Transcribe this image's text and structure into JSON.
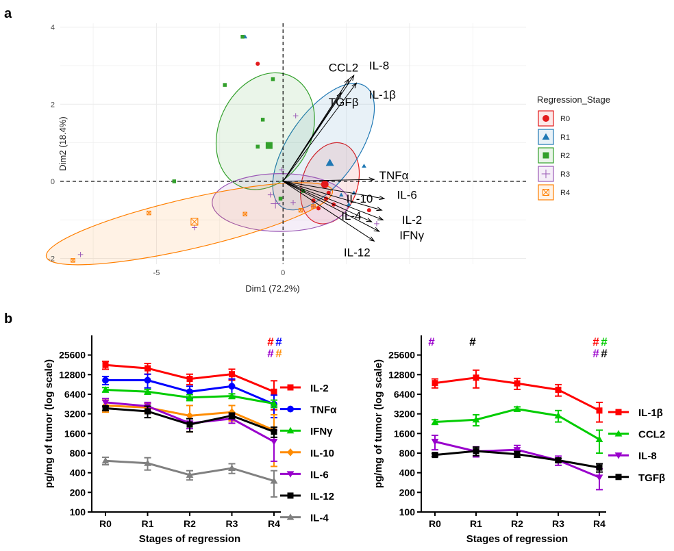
{
  "panel_labels": {
    "a": "a",
    "b": "b"
  },
  "chart_data": [
    {
      "type": "scatter",
      "xlabel": "Dim1 (72.2%)",
      "ylabel": "Dim2 (18.4%)",
      "xlim": [
        -8.8,
        9.6
      ],
      "ylim": [
        -2.15,
        4.1
      ],
      "xticks": [
        -5,
        0
      ],
      "yticks": [
        -2,
        0,
        2,
        4
      ],
      "reference_lines": {
        "x": 0,
        "y": 0
      },
      "grid": true,
      "legend_title": "Regression_Stage",
      "groups": [
        {
          "name": "R0",
          "color": "#e31a1c",
          "marker": "circle",
          "points": [
            [
              -1.0,
              3.05
            ],
            [
              1.8,
              -0.3
            ],
            [
              1.2,
              -0.5
            ],
            [
              2.0,
              -0.6
            ],
            [
              1.4,
              -0.7
            ],
            [
              3.4,
              -0.75
            ],
            [
              1.7,
              -0.45
            ]
          ],
          "centroid": [
            1.65,
            -0.08
          ],
          "ellipse": {
            "cx": 1.85,
            "cy": -0.05,
            "rx": 1.65,
            "ry": 0.72,
            "angle": 72
          }
        },
        {
          "name": "R1",
          "color": "#1f78b4",
          "marker": "triangle",
          "points": [
            [
              -1.5,
              3.75
            ],
            [
              3.2,
              0.4
            ],
            [
              2.3,
              -0.35
            ],
            [
              2.6,
              -0.6
            ],
            [
              2.8,
              -0.3
            ]
          ],
          "centroid": [
            1.85,
            0.48
          ],
          "ellipse": {
            "cx": 1.6,
            "cy": 0.9,
            "rx": 2.9,
            "ry": 0.9,
            "angle": 55
          }
        },
        {
          "name": "R2",
          "color": "#33a02c",
          "marker": "square",
          "points": [
            [
              -1.6,
              3.75
            ],
            [
              -2.3,
              2.5
            ],
            [
              -0.4,
              2.65
            ],
            [
              -0.8,
              1.6
            ],
            [
              -1.0,
              0.9
            ],
            [
              -4.3,
              0.0
            ],
            [
              -0.1,
              -0.45
            ],
            [
              0.8,
              -0.25
            ]
          ],
          "centroid": [
            -0.55,
            0.93
          ],
          "ellipse": {
            "cx": -0.7,
            "cy": 1.3,
            "rx": 2.4,
            "ry": 1.2,
            "angle": 65
          }
        },
        {
          "name": "R3",
          "color": "#9b59b6",
          "marker": "plus",
          "points": [
            [
              0.5,
              1.7
            ],
            [
              -0.05,
              0.3
            ],
            [
              0.4,
              -0.55
            ],
            [
              -0.5,
              -0.35
            ],
            [
              -3.5,
              -1.2
            ],
            [
              -8.0,
              -1.9
            ],
            [
              2.5,
              -0.9
            ],
            [
              3.7,
              -1.1
            ],
            [
              1.2,
              -0.65
            ]
          ],
          "centroid": [
            -0.3,
            -0.58
          ],
          "ellipse": {
            "cx": -0.1,
            "cy": -0.55,
            "rx": 2.7,
            "ry": 0.75,
            "angle": 0
          }
        },
        {
          "name": "R4",
          "color": "#ff7f00",
          "marker": "boxcross",
          "points": [
            [
              -5.3,
              -0.82
            ],
            [
              -8.3,
              -2.05
            ],
            [
              -1.5,
              -0.85
            ],
            [
              1.2,
              -0.65
            ],
            [
              0.7,
              -0.75
            ]
          ],
          "centroid": [
            -3.5,
            -1.05
          ],
          "ellipse": {
            "cx": -3.7,
            "cy": -1.1,
            "rx": 5.8,
            "ry": 0.65,
            "angle": 13
          }
        }
      ],
      "loadings": [
        {
          "name": "CCL2",
          "x": 2.6,
          "y": 2.65,
          "label_x": 1.8,
          "label_y": 2.85
        },
        {
          "name": "IL-8",
          "x": 2.8,
          "y": 2.75,
          "label_x": 3.4,
          "label_y": 2.9
        },
        {
          "name": "IL-1β",
          "x": 2.9,
          "y": 2.55,
          "label_x": 3.4,
          "label_y": 2.15
        },
        {
          "name": "TGFβ",
          "x": 2.3,
          "y": 2.3,
          "label_x": 1.8,
          "label_y": 1.95
        },
        {
          "name": "TNFα",
          "x": 3.6,
          "y": 0.05,
          "label_x": 3.8,
          "label_y": 0.05
        },
        {
          "name": "IL-6",
          "x": 4.0,
          "y": -0.45,
          "label_x": 4.5,
          "label_y": -0.45
        },
        {
          "name": "IL-10",
          "x": 3.9,
          "y": -0.75,
          "label_x": 2.5,
          "label_y": -0.55
        },
        {
          "name": "IL-2",
          "x": 3.95,
          "y": -1.0,
          "label_x": 4.7,
          "label_y": -1.1
        },
        {
          "name": "IL-4",
          "x": 3.5,
          "y": -1.05,
          "label_x": 2.3,
          "label_y": -1.0
        },
        {
          "name": "IFNγ",
          "x": 3.8,
          "y": -1.3,
          "label_x": 4.6,
          "label_y": -1.5
        },
        {
          "name": "IL-12",
          "x": 3.6,
          "y": -1.55,
          "label_x": 2.4,
          "label_y": -1.95
        }
      ]
    },
    {
      "type": "line",
      "xlabel": "Stages of regression",
      "ylabel": "pg/mg of tumor (log scale)",
      "yscale": "log2",
      "categories": [
        "R0",
        "R1",
        "R2",
        "R3",
        "R4"
      ],
      "yticks": [
        100,
        200,
        400,
        800,
        1600,
        3200,
        6400,
        12800,
        25600
      ],
      "ylim": [
        100,
        51200
      ],
      "series": [
        {
          "name": "IL-2",
          "color": "#ff0000",
          "marker": "square",
          "values": [
            18000,
            16000,
            11000,
            13000,
            7000
          ],
          "err": [
            2500,
            3000,
            2000,
            2500,
            3300
          ]
        },
        {
          "name": "TNFα",
          "color": "#0000ff",
          "marker": "circle",
          "values": [
            10500,
            10500,
            7000,
            8500,
            4500
          ],
          "err": [
            1500,
            2500,
            1500,
            2500,
            1700
          ]
        },
        {
          "name": "IFNγ",
          "color": "#00cc00",
          "marker": "triangle",
          "values": [
            7500,
            7000,
            5700,
            6000,
            4600
          ],
          "err": [
            600,
            600,
            600,
            500,
            600
          ]
        },
        {
          "name": "IL-10",
          "color": "#ff8c00",
          "marker": "diamond",
          "values": [
            4300,
            4000,
            3000,
            3400,
            1800
          ],
          "err": [
            900,
            700,
            1300,
            900,
            1300
          ]
        },
        {
          "name": "IL-6",
          "color": "#9900cc",
          "marker": "triangle-down",
          "values": [
            4800,
            4200,
            2300,
            2700,
            1200
          ],
          "err": [
            700,
            600,
            400,
            400,
            600
          ]
        },
        {
          "name": "IL-12",
          "color": "#000000",
          "marker": "square",
          "values": [
            3900,
            3500,
            2200,
            3000,
            1700
          ],
          "err": [
            300,
            700,
            500,
            300,
            300
          ]
        },
        {
          "name": "IL-4",
          "color": "#808080",
          "marker": "triangle",
          "values": [
            610,
            560,
            370,
            470,
            300
          ],
          "err": [
            80,
            120,
            60,
            80,
            130
          ]
        }
      ],
      "annotations": [
        {
          "category": "R4",
          "text": "#",
          "color": "#ff0000",
          "row": 0,
          "col": 0
        },
        {
          "category": "R4",
          "text": "#",
          "color": "#0000ff",
          "row": 0,
          "col": 1
        },
        {
          "category": "R4",
          "text": "#",
          "color": "#9900cc",
          "row": 1,
          "col": 0
        },
        {
          "category": "R4",
          "text": "#",
          "color": "#ff8c00",
          "row": 1,
          "col": 1
        }
      ]
    },
    {
      "type": "line",
      "xlabel": "Stages of regression",
      "ylabel": "pg/mg of tumor (log scale)",
      "yscale": "log2",
      "categories": [
        "R0",
        "R1",
        "R2",
        "R3",
        "R4"
      ],
      "yticks": [
        100,
        200,
        400,
        800,
        1600,
        3200,
        6400,
        12800,
        25600
      ],
      "ylim": [
        100,
        51200
      ],
      "series": [
        {
          "name": "IL-1β",
          "color": "#ff0000",
          "marker": "square",
          "values": [
            9500,
            11500,
            9400,
            7500,
            3600
          ],
          "err": [
            1500,
            3500,
            1800,
            1500,
            1200
          ]
        },
        {
          "name": "CCL2",
          "color": "#00cc00",
          "marker": "triangle",
          "values": [
            2400,
            2600,
            3800,
            3000,
            1300
          ],
          "err": [
            200,
            500,
            300,
            600,
            500
          ]
        },
        {
          "name": "IL-8",
          "color": "#9900cc",
          "marker": "triangle-down",
          "values": [
            1200,
            850,
            900,
            620,
            340
          ],
          "err": [
            300,
            150,
            150,
            100,
            120
          ]
        },
        {
          "name": "TGFβ",
          "color": "#000000",
          "marker": "square",
          "values": [
            750,
            860,
            770,
            620,
            480
          ],
          "err": [
            40,
            130,
            80,
            40,
            70
          ]
        }
      ],
      "annotations": [
        {
          "category": "R0",
          "text": "#",
          "color": "#9900cc",
          "row": 0,
          "col": 0
        },
        {
          "category": "R1",
          "text": "#",
          "color": "#000000",
          "row": 0,
          "col": 0
        },
        {
          "category": "R4",
          "text": "#",
          "color": "#ff0000",
          "row": 0,
          "col": 0
        },
        {
          "category": "R4",
          "text": "#",
          "color": "#00cc00",
          "row": 0,
          "col": 1
        },
        {
          "category": "R4",
          "text": "#",
          "color": "#9900cc",
          "row": 1,
          "col": 0
        },
        {
          "category": "R4",
          "text": "#",
          "color": "#000000",
          "row": 1,
          "col": 1
        }
      ]
    }
  ]
}
